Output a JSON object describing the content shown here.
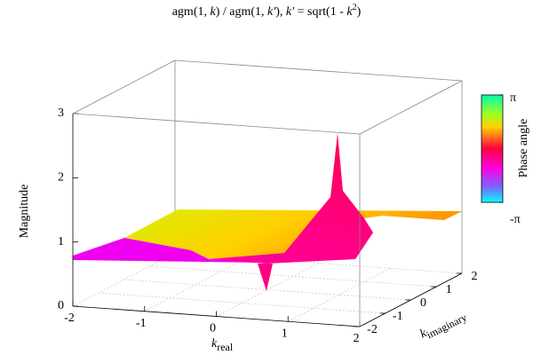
{
  "chart_data": {
    "type": "surface",
    "title": [
      "agm(1, ",
      "k",
      ") / agm(1, ",
      "k'",
      "), ",
      "k'",
      " = sqrt(1 - ",
      "k",
      "2",
      ")"
    ],
    "xlabel": [
      "k",
      "real"
    ],
    "ylabel": [
      "k",
      "imaginary"
    ],
    "zlabel": "Magnitude",
    "xlim": [
      -2,
      2
    ],
    "xticks": [
      -2,
      -1,
      0,
      1,
      2
    ],
    "ylim": [
      -2,
      2
    ],
    "yticks": [
      -2,
      -1,
      0,
      1,
      2
    ],
    "zlim": [
      0,
      3
    ],
    "zticks": [
      0,
      1,
      2,
      3
    ],
    "colorbar_label": "Phase angle",
    "clim": [
      -3.14159,
      3.14159
    ],
    "cticks": [
      {
        "value": 3.14159,
        "label": "π"
      },
      {
        "value": -3.14159,
        "label": "-π"
      }
    ],
    "grid": true
  }
}
